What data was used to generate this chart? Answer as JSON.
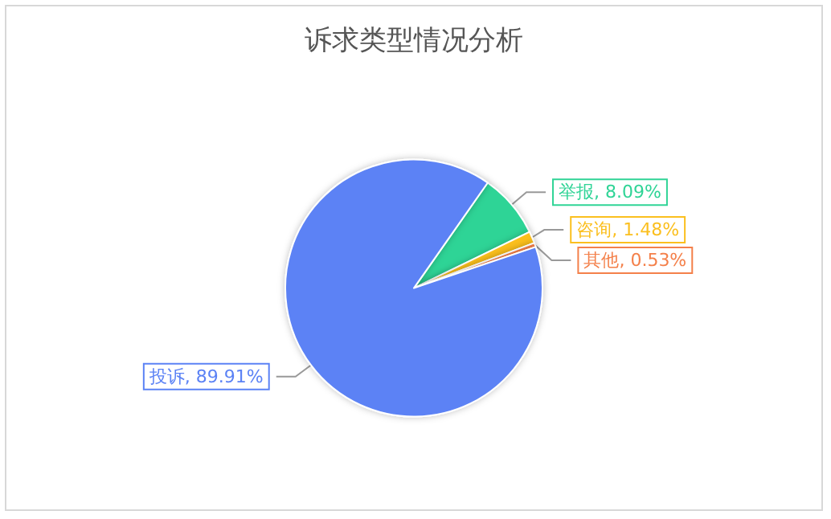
{
  "chart_data": {
    "type": "pie",
    "title": "诉求类型情况分析",
    "categories": [
      "举报",
      "咨询",
      "其他",
      "投诉"
    ],
    "values": [
      8.09,
      1.48,
      0.53,
      89.91
    ],
    "value_labels": [
      "8.09%",
      "1.48%",
      "0.53%",
      "89.91%"
    ],
    "colors": [
      "#2fd496",
      "#fbbf1e",
      "#f4804a",
      "#5b82f5"
    ],
    "legend": false
  }
}
